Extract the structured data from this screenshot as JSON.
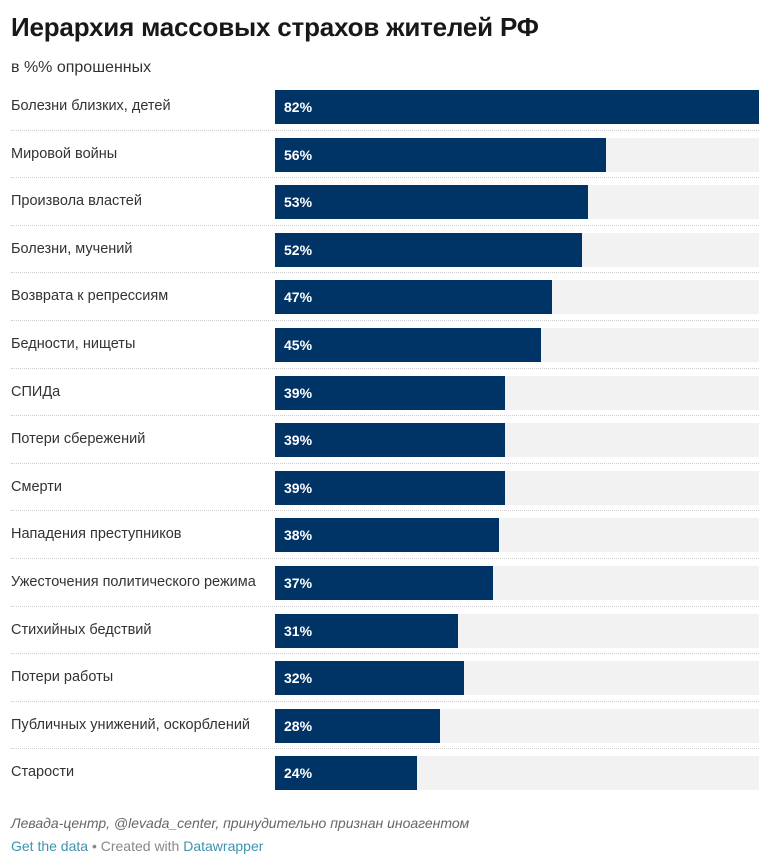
{
  "header": {
    "title": "Иерархия массовых страхов жителей РФ",
    "subtitle": "в %% опрошенных"
  },
  "colors": {
    "bar": "#003366",
    "track": "#f2f2f2",
    "link": "#1d81a2"
  },
  "chart_data": {
    "type": "bar",
    "orientation": "horizontal",
    "title": "Иерархия массовых страхов жителей РФ",
    "subtitle": "в %% опрошенных",
    "xlabel": "",
    "ylabel": "",
    "xlim": [
      0,
      82
    ],
    "unit": "%",
    "grid": false,
    "legend": "none",
    "categories": [
      "Болезни близких, детей",
      "Мировой войны",
      "Произвола властей",
      "Болезни, мучений",
      "Возврата к репрессиям",
      "Бедности, нищеты",
      "СПИДа",
      "Потери сбережений",
      "Смерти",
      "Нападения преступников",
      "Ужесточения политического режима",
      "Стихийных бедствий",
      "Потери работы",
      "Публичных унижений, оскорблений",
      "Старости"
    ],
    "values": [
      82,
      56,
      53,
      52,
      47,
      45,
      39,
      39,
      39,
      38,
      37,
      31,
      32,
      28,
      24
    ],
    "value_labels": [
      "82%",
      "56%",
      "53%",
      "52%",
      "47%",
      "45%",
      "39%",
      "39%",
      "39%",
      "38%",
      "37%",
      "31%",
      "32%",
      "28%",
      "24%"
    ]
  },
  "footer": {
    "notes": "Левада-центр, @levada_center, принудительно признан иноагентом",
    "get_data": "Get the data",
    "separator": " • Created with ",
    "datawrapper": "Datawrapper"
  }
}
